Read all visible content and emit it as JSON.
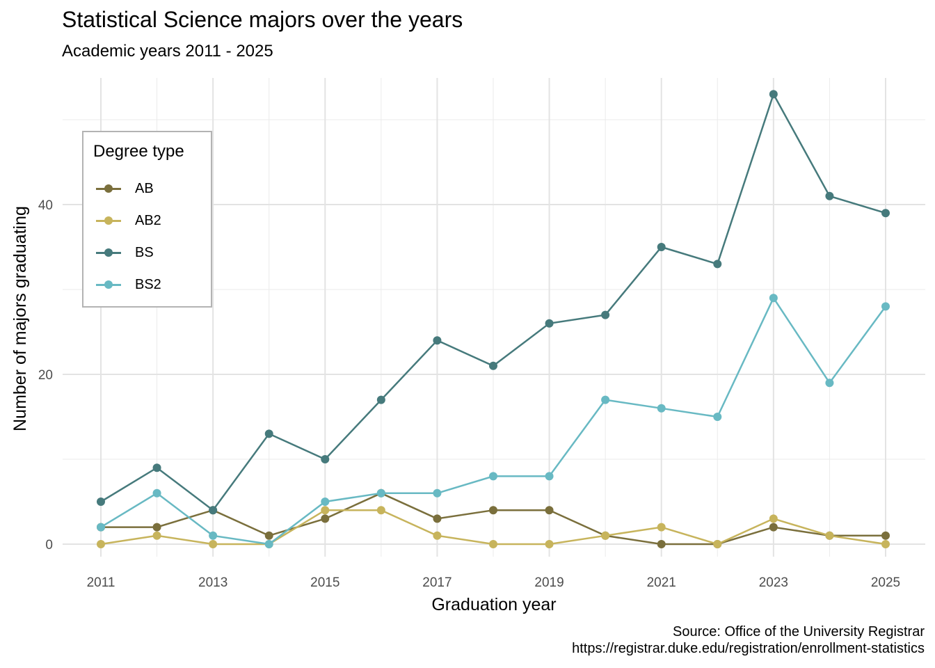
{
  "chart_data": {
    "type": "line",
    "title": "Statistical Science majors over the years",
    "subtitle": "Academic years 2011 - 2025",
    "xlabel": "Graduation year",
    "ylabel": "Number of majors graduating",
    "caption_line1": "Source: Office of the University Registrar",
    "caption_line2": "https://registrar.duke.edu/registration/enrollment-statistics",
    "x": [
      2011,
      2012,
      2013,
      2014,
      2015,
      2016,
      2017,
      2018,
      2019,
      2020,
      2021,
      2022,
      2023,
      2024,
      2025
    ],
    "x_ticks": [
      2011,
      2013,
      2015,
      2017,
      2019,
      2021,
      2023,
      2025
    ],
    "y_ticks": [
      0,
      20,
      40
    ],
    "xlim": [
      2010.4,
      2025.7
    ],
    "ylim": [
      -2.7,
      55.5
    ],
    "grid": true,
    "legend_title": "Degree type",
    "legend_position": "top-left",
    "series": [
      {
        "name": "AB",
        "color": "#7a6f3c",
        "values": [
          2,
          2,
          4,
          1,
          3,
          6,
          3,
          4,
          4,
          1,
          0,
          0,
          2,
          1,
          1
        ]
      },
      {
        "name": "AB2",
        "color": "#c7b45c",
        "values": [
          0,
          1,
          0,
          0,
          4,
          4,
          1,
          0,
          0,
          1,
          2,
          0,
          3,
          1,
          0
        ]
      },
      {
        "name": "BS",
        "color": "#467a7c",
        "values": [
          5,
          9,
          4,
          13,
          10,
          17,
          24,
          21,
          26,
          27,
          35,
          33,
          53,
          41,
          39
        ]
      },
      {
        "name": "BS2",
        "color": "#68b9c3",
        "values": [
          2,
          6,
          1,
          0,
          5,
          6,
          6,
          8,
          8,
          17,
          16,
          15,
          29,
          19,
          28
        ]
      }
    ]
  }
}
